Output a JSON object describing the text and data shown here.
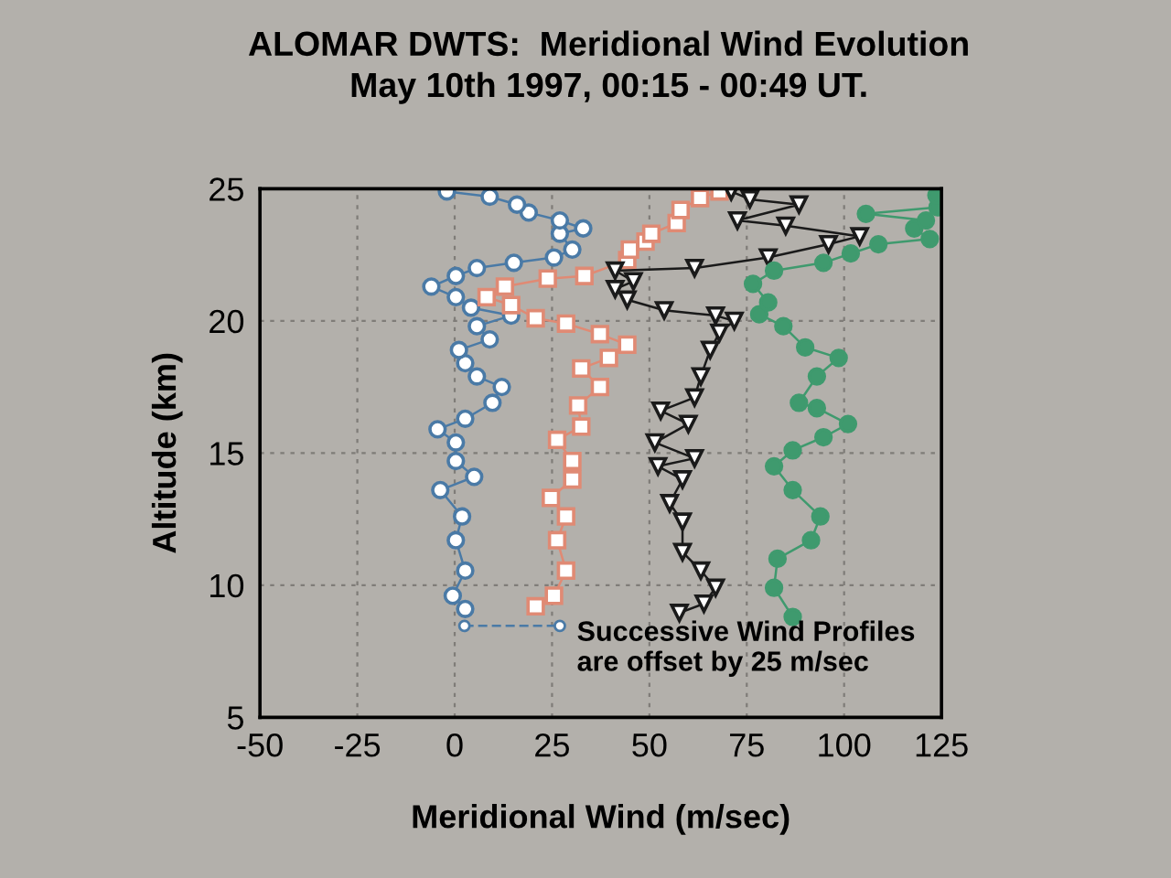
{
  "chart_data": {
    "type": "line",
    "title": "ALOMAR DWTS:  Meridional Wind Evolution",
    "subtitle": "May 10th 1997, 00:15 - 00:49 UT.",
    "xlabel": "Meridional Wind (m/sec)",
    "ylabel": "Altitude (km)",
    "annotations": [
      "Successive Wind Profiles\nare offset by 25 m/sec"
    ],
    "xlim": [
      -50,
      125
    ],
    "xticks": [
      -50,
      -25,
      0,
      25,
      50,
      75,
      100,
      125
    ],
    "ylim": [
      5,
      25
    ],
    "yticks": [
      5,
      10,
      15,
      20,
      25
    ],
    "grid": true,
    "line_style": "solid",
    "series": [
      {
        "color": "#4a7aa6",
        "marker": "circle",
        "values": [
          9.1,
          9.6,
          10.55,
          11.7,
          12.6,
          13.6,
          14.1,
          14.7,
          15.4,
          15.9,
          16.3,
          16.9,
          17.5,
          17.9,
          18.4,
          18.9,
          19.3,
          19.8,
          20.2,
          20.5,
          20.9,
          21.3,
          21.7,
          22.0,
          22.2,
          22.4,
          22.7,
          23.3,
          23.5,
          23.8,
          24.1,
          24.4,
          24.7,
          24.9
        ],
        "x": [
          2.7,
          -0.5,
          2.7,
          0.3,
          1.9,
          -3.7,
          5,
          0.3,
          0.3,
          -4.4,
          2.7,
          9.7,
          12.1,
          5.7,
          2.7,
          1.1,
          9,
          5.7,
          14.5,
          4.2,
          0.3,
          -6,
          0.3,
          5.7,
          15.2,
          25.5,
          30.2,
          27,
          33,
          27,
          19,
          16,
          9,
          -2
        ]
      },
      {
        "color": "#e08a74",
        "marker": "square",
        "values": [
          9.2,
          9.6,
          10.55,
          11.7,
          12.6,
          13.3,
          14.0,
          14.7,
          15.5,
          16.0,
          16.8,
          17.5,
          18.2,
          18.6,
          19.1,
          19.5,
          19.9,
          20.1,
          20.6,
          20.9,
          21.3,
          21.6,
          21.7,
          22.3,
          22.7,
          23.0,
          23.3,
          23.7,
          24.2,
          24.65,
          24.9
        ],
        "x": [
          20.8,
          25.5,
          28.6,
          26.3,
          28.6,
          24.7,
          30.2,
          30.2,
          26.3,
          32.5,
          31.7,
          37.3,
          32.5,
          39.6,
          44.3,
          37.3,
          28.6,
          20.8,
          14.5,
          8.2,
          12.9,
          23.9,
          33.3,
          44.3,
          45,
          49,
          50.5,
          57,
          58,
          63,
          68
        ]
      },
      {
        "color": "#1a1a1a",
        "marker": "triangle",
        "values": [
          8.95,
          9.3,
          9.9,
          10.55,
          11.25,
          12.4,
          13.1,
          14.0,
          14.5,
          14.8,
          15.4,
          16.1,
          16.6,
          17.1,
          17.9,
          18.9,
          19.55,
          20.0,
          20.2,
          20.4,
          20.8,
          21.2,
          21.5,
          21.9,
          22.0,
          22.4,
          22.9,
          23.2,
          23.6,
          23.8,
          24.4,
          24.6,
          24.9
        ],
        "x": [
          57.7,
          64,
          67,
          63.2,
          58.5,
          58.5,
          55.2,
          58.5,
          52.2,
          61.6,
          51.4,
          60,
          52.9,
          61.6,
          63.2,
          65.6,
          68,
          71.8,
          67,
          53.8,
          44.3,
          41.2,
          45.9,
          41.2,
          61.6,
          80.5,
          96,
          104,
          85,
          72.6,
          88.4,
          75.8,
          71
        ]
      },
      {
        "color": "#3f9a6e",
        "marker": "circle",
        "values": [
          8.8,
          9.9,
          11.0,
          11.7,
          12.6,
          13.6,
          14.5,
          15.1,
          15.6,
          16.1,
          16.7,
          16.9,
          17.9,
          18.6,
          19.0,
          19.8,
          20.25,
          20.7,
          21.4,
          21.9,
          22.2,
          22.55,
          22.9,
          23.1,
          23.5,
          23.8,
          24.05,
          24.3,
          24.75
        ],
        "x": [
          86.8,
          82,
          82.9,
          91.5,
          93.9,
          86.8,
          82,
          86.8,
          94.7,
          101,
          93,
          88.4,
          93,
          98.6,
          90,
          84.4,
          78.2,
          80.5,
          76.6,
          82,
          94.7,
          101.7,
          108.8,
          122,
          118,
          121,
          105.6,
          124,
          123.7
        ]
      }
    ]
  }
}
